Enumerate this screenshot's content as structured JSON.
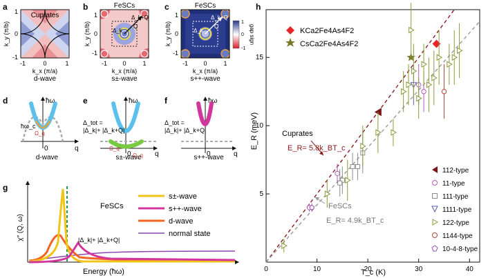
{
  "panels": {
    "a": {
      "letter": "a",
      "title": "Cuprates",
      "ylabel": "k_y (π/b)",
      "xlabel": "k_x (π/a)",
      "xticks": [
        "-1",
        "0",
        "1"
      ],
      "yticks": [
        "1",
        "0",
        "-1"
      ],
      "caption": "d-wave"
    },
    "b": {
      "letter": "b",
      "title": "FeSCs",
      "ylabel": "k_y (π/b)",
      "xlabel": "k_x (π/a)",
      "xticks": [
        "-1",
        "0",
        "1"
      ],
      "yticks": [
        "1",
        "0",
        "-1"
      ],
      "caption": "s±-wave",
      "labels": {
        "delta_kq": "Δ_k+Q",
        "delta_k": "Δ_k",
        "Q": "Q"
      }
    },
    "c": {
      "letter": "c",
      "title": "FeSCs",
      "ylabel": "k_y (π/b)",
      "xlabel": "k_x (π/a)",
      "xticks": [
        "-1",
        "0",
        "1"
      ],
      "yticks": [
        "1",
        "0",
        "-1"
      ],
      "caption": "s++-wave",
      "labels": {
        "delta_kq": "Δ_k+Q",
        "delta_k": "Δ_k",
        "Q": "Q"
      },
      "colorbar": {
        "label": "gap sign",
        "ticks": [
          "1",
          "0",
          "-1"
        ]
      }
    },
    "d": {
      "letter": "d",
      "axis_y": "ħω",
      "axis_x": "q",
      "zero": "0",
      "caption": "d-wave",
      "labels": {
        "omega_c": "ħω_c",
        "Omega_q": "Ω_q"
      }
    },
    "e": {
      "letter": "e",
      "axis_y": "ħω",
      "axis_x": "q",
      "zero": "0",
      "caption": "s±-wave",
      "formula_line1": "Δ_tot =",
      "formula_line2": "|Δ_k|+ |Δ_k+Q|",
      "labels": {
        "Omega_q_left": "Ω_q",
        "Omega_q_right": "Ω_q"
      }
    },
    "f": {
      "letter": "f",
      "axis_y": "ħω",
      "axis_x": "q",
      "zero": "0",
      "caption": "s++-wave",
      "formula_line1": "Δ_tot =",
      "formula_line2": "|Δ_k|+ |Δ_k+Q|"
    },
    "g": {
      "letter": "g",
      "ylabel": "χ″ (Q, ω)",
      "xlabel": "Energy (ħω)",
      "inset_label": "FeSCs",
      "gap_label": "|Δ_k|+ |Δ_k+Q|",
      "legend": [
        {
          "name": "s±-wave",
          "color": "#f0c419"
        },
        {
          "name": "s++-wave",
          "color": "#d2359c"
        },
        {
          "name": "d-wave",
          "color": "#f26522"
        },
        {
          "name": "normal state",
          "color": "#8e44ad"
        }
      ]
    },
    "h": {
      "letter": "h",
      "legend_top": [
        {
          "name": "KCa2Fe4As4F2",
          "color": "#e8242b"
        },
        {
          "name": "CsCa2Fe4As4F2",
          "color": "#7a7a2a"
        }
      ],
      "legend_bottom": [
        {
          "name": "112-type",
          "color": "#7b1518"
        },
        {
          "name": "11-type",
          "color": "#b45ab4"
        },
        {
          "name": "111-type",
          "color": "#8c8c8c"
        },
        {
          "name": "1111-type",
          "color": "#5a5ab4"
        },
        {
          "name": "122-type",
          "color": "#8a9a3a"
        },
        {
          "name": "1144-type",
          "color": "#b84030"
        },
        {
          "name": "10-4-8-type",
          "color": "#9a4ab4"
        }
      ],
      "cuprates_label": "Cuprates",
      "cuprates_formula": "E_R= 5.8k_BT_c",
      "fescs_label": "FeSCs",
      "fescs_formula": "E_R= 4.9k_BT_c"
    }
  },
  "chart_data": {
    "type": "scatter",
    "xlabel": "T_c (K)",
    "ylabel": "E_R (meV)",
    "xlim": [
      0,
      42
    ],
    "ylim": [
      0,
      18.5
    ],
    "xticks": [
      0,
      10,
      20,
      30,
      40
    ],
    "yticks": [
      5,
      10,
      15
    ],
    "lines": [
      {
        "name": "Cuprates",
        "slope": 0.5,
        "color": "#8b1a1a"
      },
      {
        "name": "FeSCs",
        "slope": 0.42,
        "color": "#999999"
      }
    ],
    "series": [
      {
        "name": "KCa2Fe4As4F2",
        "marker": "diamond",
        "color": "#e8242b",
        "points": [
          {
            "x": 33.5,
            "y": 16,
            "err": 0
          }
        ]
      },
      {
        "name": "CsCa2Fe4As4F2",
        "marker": "star",
        "color": "#7a7a2a",
        "points": [
          {
            "x": 28.5,
            "y": 15,
            "err": 0
          }
        ]
      },
      {
        "name": "112-type",
        "marker": "tri-left-filled",
        "color": "#7b1518",
        "points": [
          {
            "x": 22,
            "y": 11,
            "err": 0
          }
        ]
      },
      {
        "name": "11-type",
        "marker": "circle",
        "color": "#b45ab4",
        "points": [
          {
            "x": 8.5,
            "y": 4,
            "err": 0.3
          },
          {
            "x": 14,
            "y": 6.5,
            "err": 0.7
          },
          {
            "x": 30,
            "y": 13,
            "err": 1.5
          },
          {
            "x": 31,
            "y": 12.5,
            "err": 1.5
          }
        ]
      },
      {
        "name": "111-type",
        "marker": "square",
        "color": "#8c8c8c",
        "points": [
          {
            "x": 15,
            "y": 6,
            "err": 1
          },
          {
            "x": 17,
            "y": 7,
            "err": 1
          },
          {
            "x": 18,
            "y": 7,
            "err": 1
          },
          {
            "x": 19,
            "y": 8,
            "err": 1.5
          },
          {
            "x": 14.5,
            "y": 5.8,
            "err": 1
          }
        ]
      },
      {
        "name": "1111-type",
        "marker": "tri-down",
        "color": "#5a5ab4",
        "points": [
          {
            "x": 29,
            "y": 13,
            "err": 1.5
          }
        ]
      },
      {
        "name": "122-type",
        "marker": "tri-right",
        "color": "#8a9a3a",
        "points": [
          {
            "x": 3.5,
            "y": 1.2,
            "err": 0.5
          },
          {
            "x": 12,
            "y": 5,
            "err": 1
          },
          {
            "x": 16,
            "y": 6,
            "err": 1.5
          },
          {
            "x": 19,
            "y": 8.5,
            "err": 1.5
          },
          {
            "x": 22,
            "y": 9.5,
            "err": 1.5
          },
          {
            "x": 25,
            "y": 9.5,
            "err": 1
          },
          {
            "x": 27,
            "y": 12.5,
            "err": 1.5
          },
          {
            "x": 28,
            "y": 13,
            "err": 1.5
          },
          {
            "x": 29,
            "y": 14,
            "err": 2
          },
          {
            "x": 31,
            "y": 14.5,
            "err": 1.5
          },
          {
            "x": 32,
            "y": 13,
            "err": 2
          },
          {
            "x": 33,
            "y": 13.5,
            "err": 2
          },
          {
            "x": 34,
            "y": 15,
            "err": 2
          },
          {
            "x": 36,
            "y": 14.5,
            "err": 1.5
          },
          {
            "x": 37,
            "y": 15,
            "err": 2
          },
          {
            "x": 38,
            "y": 15.5,
            "err": 2
          },
          {
            "x": 30,
            "y": 12,
            "err": 1.5
          },
          {
            "x": 28.5,
            "y": 17,
            "err": 2
          }
        ]
      },
      {
        "name": "1144-type",
        "marker": "circle",
        "color": "#b84030",
        "points": [
          {
            "x": 35,
            "y": 12.5,
            "err": 2
          }
        ]
      },
      {
        "name": "10-4-8-type",
        "marker": "pentagon",
        "color": "#9a4ab4",
        "points": [
          {
            "x": 9,
            "y": 4,
            "err": 0.3
          }
        ]
      }
    ]
  }
}
